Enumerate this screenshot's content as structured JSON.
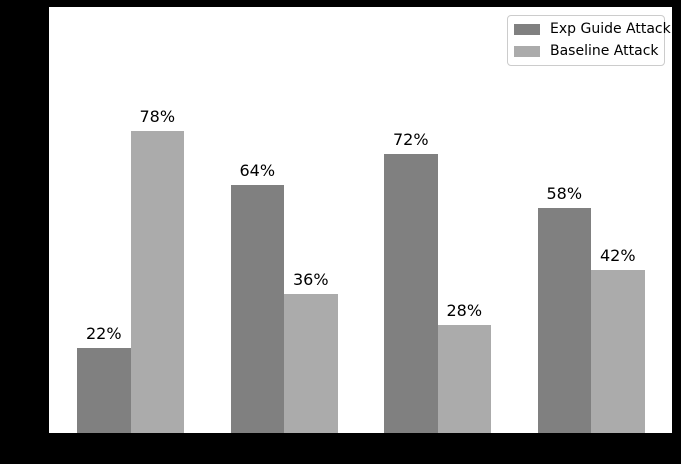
{
  "figure": {
    "background_color": "#000000",
    "plot_background_color": "#ffffff"
  },
  "chart_data": {
    "type": "bar",
    "title": "",
    "xlabel": "",
    "ylabel": "",
    "categories": [
      "",
      "",
      "",
      ""
    ],
    "series": [
      {
        "name": "Exp Guide Attack",
        "color": "#808080",
        "values": [
          22,
          64,
          72,
          58
        ],
        "value_labels": [
          "22%",
          "64%",
          "72%",
          "58%"
        ]
      },
      {
        "name": "Baseline Attack",
        "color": "#ababab",
        "values": [
          78,
          36,
          28,
          42
        ],
        "value_labels": [
          "78%",
          "36%",
          "28%",
          "42%"
        ]
      }
    ],
    "ylim": [
      0,
      110
    ],
    "grid": false,
    "legend_position": "upper right",
    "value_label_suffix": "%"
  }
}
